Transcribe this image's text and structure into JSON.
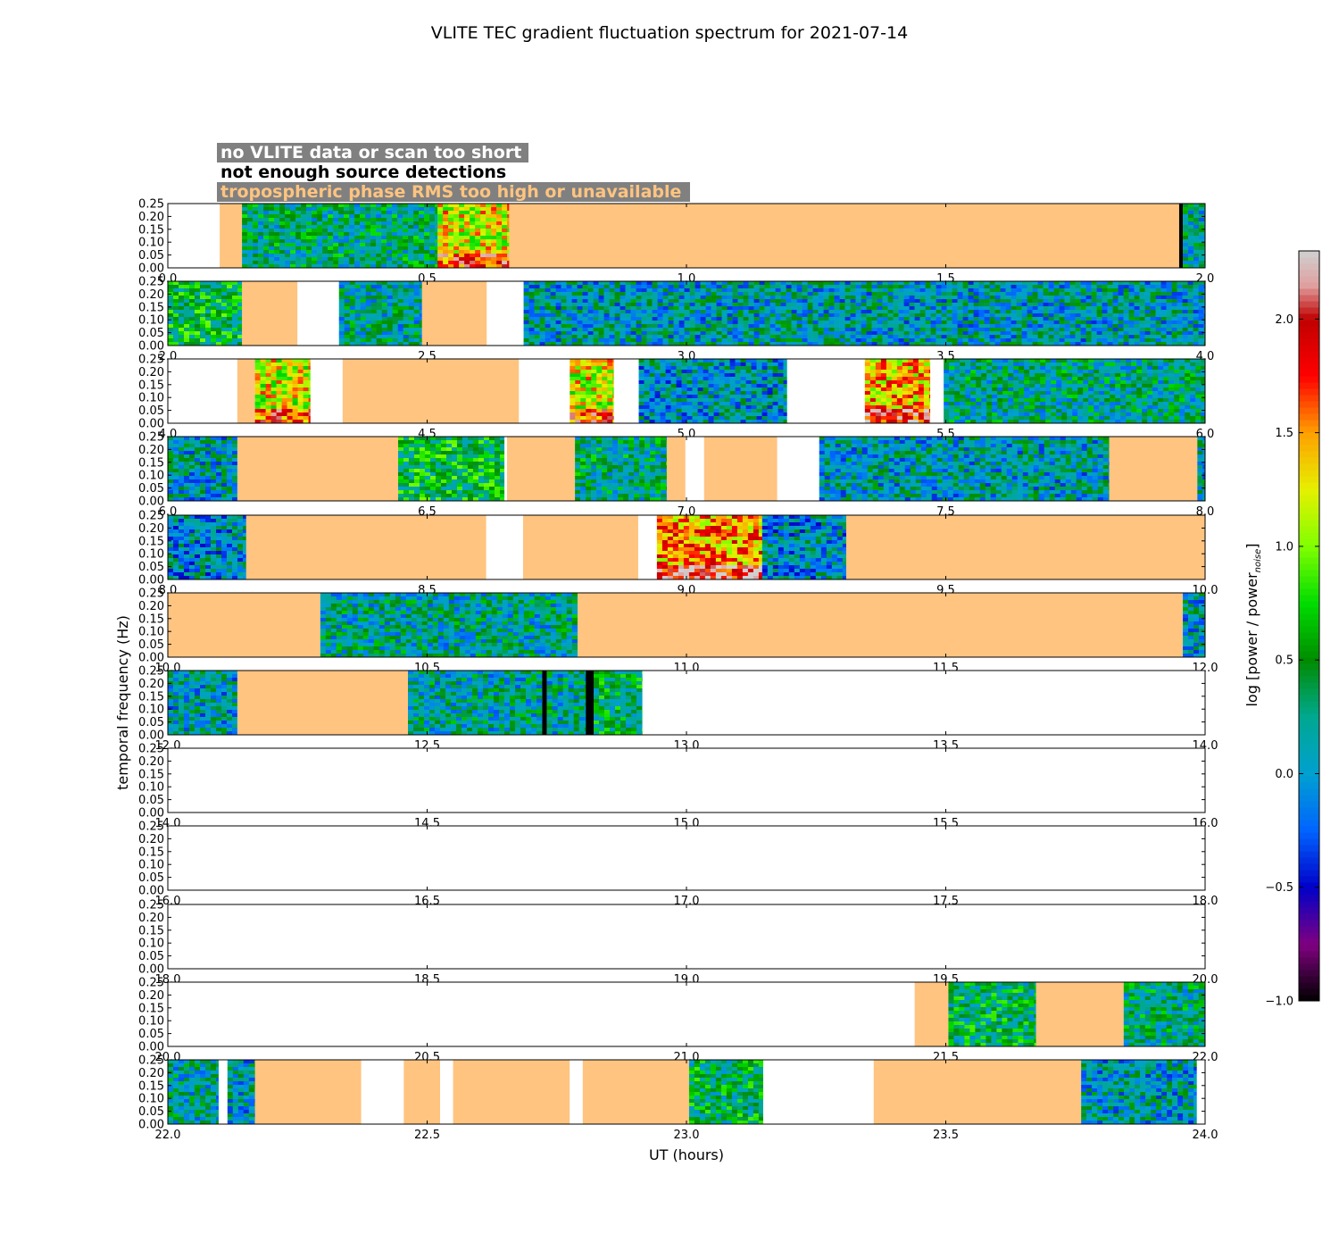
{
  "chart_data": {
    "type": "heatmap",
    "title": "VLITE TEC gradient fluctuation spectrum for 2021-07-14",
    "xlabel": "UT (hours)",
    "ylabel": "temporal frequency (Hz)",
    "ylim": [
      0,
      0.25
    ],
    "yticks": [
      "0.00",
      "0.05",
      "0.10",
      "0.15",
      "0.20",
      "0.25"
    ],
    "colorbar": {
      "label": "log [power / power",
      "label_sub": "noise",
      "label_end": "]",
      "range": [
        -1.0,
        2.3
      ],
      "ticks": [
        "−1.0",
        "−0.5",
        "0.0",
        "0.5",
        "1.0",
        "1.5",
        "2.0"
      ],
      "tick_values": [
        -1.0,
        -0.5,
        0.0,
        0.5,
        1.0,
        1.5,
        2.0
      ]
    },
    "legend": [
      {
        "text": "no VLITE data or scan too short",
        "color": "#ffffff",
        "background": "#808080"
      },
      {
        "text": "not enough source detections",
        "color": "#000000",
        "background": "#ffffff"
      },
      {
        "text": "tropospheric phase RMS too high or unavailable",
        "color": "#ffc480",
        "background": "#808080"
      }
    ],
    "status_colors": {
      "nodata": "#ffffff",
      "nodetect": "#000000",
      "tropo": "#ffc480"
    },
    "rows": [
      {
        "xlim": [
          0.0,
          2.0
        ],
        "xticks": [
          "0.0",
          "0.5",
          "1.0",
          "1.5",
          "2.0"
        ],
        "segments": [
          {
            "start": 0.0,
            "end": 0.1,
            "kind": "nodata"
          },
          {
            "start": 0.1,
            "end": 0.143,
            "kind": "tropo"
          },
          {
            "start": 0.143,
            "end": 0.52,
            "kind": "data",
            "level": 0.3
          },
          {
            "start": 0.52,
            "end": 0.658,
            "kind": "data",
            "level": 1.25
          },
          {
            "start": 0.658,
            "end": 1.95,
            "kind": "tropo"
          },
          {
            "start": 1.95,
            "end": 1.957,
            "kind": "nodetect"
          },
          {
            "start": 1.957,
            "end": 2.0,
            "kind": "data",
            "level": 0.2
          }
        ]
      },
      {
        "xlim": [
          2.0,
          4.0
        ],
        "xticks": [
          "2.0",
          "2.5",
          "3.0",
          "3.5",
          "4.0"
        ],
        "segments": [
          {
            "start": 2.0,
            "end": 2.143,
            "kind": "data",
            "level": 0.5
          },
          {
            "start": 2.143,
            "end": 2.25,
            "kind": "tropo"
          },
          {
            "start": 2.25,
            "end": 2.33,
            "kind": "nodata"
          },
          {
            "start": 2.33,
            "end": 2.49,
            "kind": "data",
            "level": 0.2
          },
          {
            "start": 2.49,
            "end": 2.615,
            "kind": "tropo"
          },
          {
            "start": 2.615,
            "end": 2.686,
            "kind": "nodata"
          },
          {
            "start": 2.686,
            "end": 4.0,
            "kind": "data",
            "level": 0.1
          }
        ]
      },
      {
        "xlim": [
          4.0,
          6.0
        ],
        "xticks": [
          "4.0",
          "4.5",
          "5.0",
          "5.5",
          "6.0"
        ],
        "segments": [
          {
            "start": 4.0,
            "end": 4.134,
            "kind": "nodata"
          },
          {
            "start": 4.134,
            "end": 4.168,
            "kind": "tropo"
          },
          {
            "start": 4.168,
            "end": 4.275,
            "kind": "data",
            "level": 1.2
          },
          {
            "start": 4.275,
            "end": 4.337,
            "kind": "nodata"
          },
          {
            "start": 4.337,
            "end": 4.677,
            "kind": "tropo"
          },
          {
            "start": 4.677,
            "end": 4.775,
            "kind": "nodata"
          },
          {
            "start": 4.775,
            "end": 4.86,
            "kind": "data",
            "level": 1.2
          },
          {
            "start": 4.86,
            "end": 4.908,
            "kind": "nodata"
          },
          {
            "start": 4.908,
            "end": 5.194,
            "kind": "data",
            "level": 0.05
          },
          {
            "start": 5.194,
            "end": 5.344,
            "kind": "nodata"
          },
          {
            "start": 5.344,
            "end": 5.47,
            "kind": "data",
            "level": 1.4
          },
          {
            "start": 5.47,
            "end": 5.496,
            "kind": "nodata"
          },
          {
            "start": 5.496,
            "end": 6.0,
            "kind": "data",
            "level": 0.25
          }
        ]
      },
      {
        "xlim": [
          6.0,
          8.0
        ],
        "xticks": [
          "6.0",
          "6.5",
          "7.0",
          "7.5",
          "8.0"
        ],
        "segments": [
          {
            "start": 6.0,
            "end": 6.134,
            "kind": "data",
            "level": 0.1
          },
          {
            "start": 6.134,
            "end": 6.444,
            "kind": "tropo"
          },
          {
            "start": 6.444,
            "end": 6.649,
            "kind": "data",
            "level": 0.5
          },
          {
            "start": 6.649,
            "end": 6.654,
            "kind": "nodata"
          },
          {
            "start": 6.654,
            "end": 6.785,
            "kind": "tropo"
          },
          {
            "start": 6.785,
            "end": 6.962,
            "kind": "data",
            "level": 0.3
          },
          {
            "start": 6.962,
            "end": 6.998,
            "kind": "tropo"
          },
          {
            "start": 6.998,
            "end": 7.034,
            "kind": "nodata"
          },
          {
            "start": 7.034,
            "end": 7.175,
            "kind": "tropo"
          },
          {
            "start": 7.175,
            "end": 7.256,
            "kind": "nodata"
          },
          {
            "start": 7.256,
            "end": 7.815,
            "kind": "data",
            "level": 0.1
          },
          {
            "start": 7.815,
            "end": 7.985,
            "kind": "tropo"
          },
          {
            "start": 7.985,
            "end": 8.0,
            "kind": "data",
            "level": 0.1
          }
        ]
      },
      {
        "xlim": [
          8.0,
          10.0
        ],
        "xticks": [
          "8.0",
          "8.5",
          "9.0",
          "9.5",
          "10.0"
        ],
        "segments": [
          {
            "start": 8.0,
            "end": 8.151,
            "kind": "data",
            "level": 0.0
          },
          {
            "start": 8.151,
            "end": 8.614,
            "kind": "tropo"
          },
          {
            "start": 8.614,
            "end": 8.685,
            "kind": "nodata"
          },
          {
            "start": 8.685,
            "end": 8.907,
            "kind": "tropo"
          },
          {
            "start": 8.907,
            "end": 8.943,
            "kind": "nodata"
          },
          {
            "start": 8.943,
            "end": 9.146,
            "kind": "data",
            "level": 1.5
          },
          {
            "start": 9.146,
            "end": 9.308,
            "kind": "data",
            "level": 0.0
          },
          {
            "start": 9.308,
            "end": 10.0,
            "kind": "tropo"
          }
        ]
      },
      {
        "xlim": [
          10.0,
          12.0
        ],
        "xticks": [
          "10.0",
          "10.5",
          "11.0",
          "11.5",
          "12.0"
        ],
        "segments": [
          {
            "start": 10.0,
            "end": 10.294,
            "kind": "tropo"
          },
          {
            "start": 10.294,
            "end": 10.79,
            "kind": "data",
            "level": 0.2
          },
          {
            "start": 10.79,
            "end": 11.957,
            "kind": "tropo"
          },
          {
            "start": 11.957,
            "end": 12.0,
            "kind": "data",
            "level": 0.1
          }
        ]
      },
      {
        "xlim": [
          12.0,
          14.0
        ],
        "xticks": [
          "12.0",
          "12.5",
          "13.0",
          "13.5",
          "14.0"
        ],
        "segments": [
          {
            "start": 12.0,
            "end": 12.134,
            "kind": "data",
            "level": 0.1
          },
          {
            "start": 12.134,
            "end": 12.463,
            "kind": "tropo"
          },
          {
            "start": 12.463,
            "end": 12.722,
            "kind": "data",
            "level": 0.2
          },
          {
            "start": 12.722,
            "end": 12.731,
            "kind": "nodetect"
          },
          {
            "start": 12.731,
            "end": 12.806,
            "kind": "data",
            "level": 0.2
          },
          {
            "start": 12.806,
            "end": 12.821,
            "kind": "nodetect"
          },
          {
            "start": 12.821,
            "end": 12.915,
            "kind": "data",
            "level": 0.4
          },
          {
            "start": 12.915,
            "end": 14.0,
            "kind": "nodata"
          }
        ]
      },
      {
        "xlim": [
          14.0,
          16.0
        ],
        "xticks": [
          "14.0",
          "14.5",
          "15.0",
          "15.5",
          "16.0"
        ],
        "segments": [
          {
            "start": 14.0,
            "end": 16.0,
            "kind": "nodata"
          }
        ]
      },
      {
        "xlim": [
          16.0,
          18.0
        ],
        "xticks": [
          "16.0",
          "16.5",
          "17.0",
          "17.5",
          "18.0"
        ],
        "segments": [
          {
            "start": 16.0,
            "end": 18.0,
            "kind": "nodata"
          }
        ]
      },
      {
        "xlim": [
          18.0,
          20.0
        ],
        "xticks": [
          "18.0",
          "18.5",
          "19.0",
          "19.5",
          "20.0"
        ],
        "segments": [
          {
            "start": 18.0,
            "end": 20.0,
            "kind": "nodata"
          }
        ]
      },
      {
        "xlim": [
          20.0,
          22.0
        ],
        "xticks": [
          "20.0",
          "20.5",
          "21.0",
          "21.5",
          "22.0"
        ],
        "segments": [
          {
            "start": 20.0,
            "end": 21.44,
            "kind": "nodata"
          },
          {
            "start": 21.44,
            "end": 21.505,
            "kind": "tropo"
          },
          {
            "start": 21.505,
            "end": 21.674,
            "kind": "data",
            "level": 0.4
          },
          {
            "start": 21.674,
            "end": 21.843,
            "kind": "tropo"
          },
          {
            "start": 21.843,
            "end": 22.0,
            "kind": "data",
            "level": 0.3
          }
        ]
      },
      {
        "xlim": [
          22.0,
          24.0
        ],
        "xticks": [
          "22.0",
          "22.5",
          "23.0",
          "23.5",
          "24.0"
        ],
        "segments": [
          {
            "start": 22.0,
            "end": 22.098,
            "kind": "data",
            "level": 0.2
          },
          {
            "start": 22.098,
            "end": 22.115,
            "kind": "nodata"
          },
          {
            "start": 22.115,
            "end": 22.168,
            "kind": "data",
            "level": 0.1
          },
          {
            "start": 22.168,
            "end": 22.373,
            "kind": "tropo"
          },
          {
            "start": 22.373,
            "end": 22.455,
            "kind": "nodata"
          },
          {
            "start": 22.455,
            "end": 22.525,
            "kind": "tropo"
          },
          {
            "start": 22.525,
            "end": 22.55,
            "kind": "nodata"
          },
          {
            "start": 22.55,
            "end": 22.775,
            "kind": "tropo"
          },
          {
            "start": 22.775,
            "end": 22.8,
            "kind": "nodata"
          },
          {
            "start": 22.8,
            "end": 23.005,
            "kind": "tropo"
          },
          {
            "start": 23.005,
            "end": 23.148,
            "kind": "data",
            "level": 0.4
          },
          {
            "start": 23.148,
            "end": 23.361,
            "kind": "nodata"
          },
          {
            "start": 23.361,
            "end": 23.761,
            "kind": "tropo"
          },
          {
            "start": 23.761,
            "end": 23.984,
            "kind": "data",
            "level": 0.1
          },
          {
            "start": 23.984,
            "end": 24.0,
            "kind": "nodata"
          }
        ]
      }
    ]
  }
}
